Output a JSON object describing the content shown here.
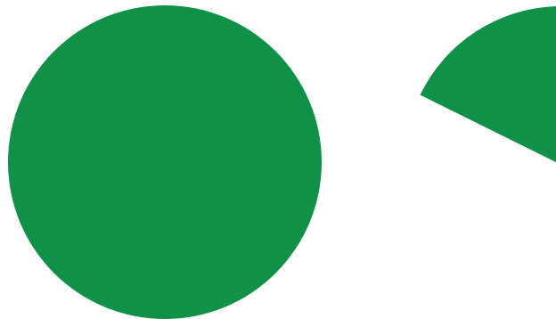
{
  "background_color": "#ffffff",
  "shapes": {
    "full_circle": {
      "icon": "green-circle-icon",
      "color": "#0f9147"
    },
    "partial_circle": {
      "icon": "green-circle-sector-icon",
      "color": "#0f9147"
    }
  }
}
